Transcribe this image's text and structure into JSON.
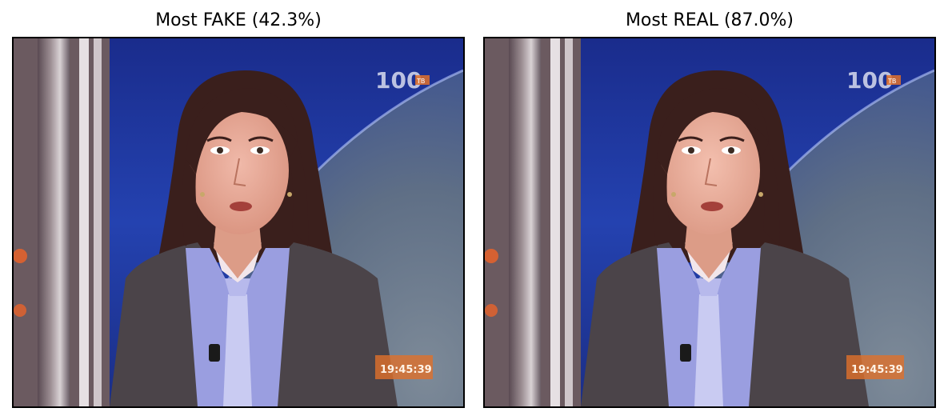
{
  "panels": [
    {
      "title": "Most FAKE (42.3%)",
      "label": "FAKE",
      "score_percent": 42.3,
      "overlay": {
        "channel_logo": "100",
        "channel_logo_sub": "ТВ",
        "time": "19:45:39"
      }
    },
    {
      "title": "Most REAL (87.0%)",
      "label": "REAL",
      "score_percent": 87.0,
      "overlay": {
        "channel_logo": "100",
        "channel_logo_sub": "ТВ",
        "time": "19:45:39"
      }
    }
  ],
  "colors": {
    "studio_blue": "#1b3aa8",
    "globe_grey": "#6f7f92",
    "jacket": "#4b4449",
    "hair": "#3a1f1c",
    "shirt": "#9a9ee0",
    "clock_orange": "#e0702a"
  }
}
